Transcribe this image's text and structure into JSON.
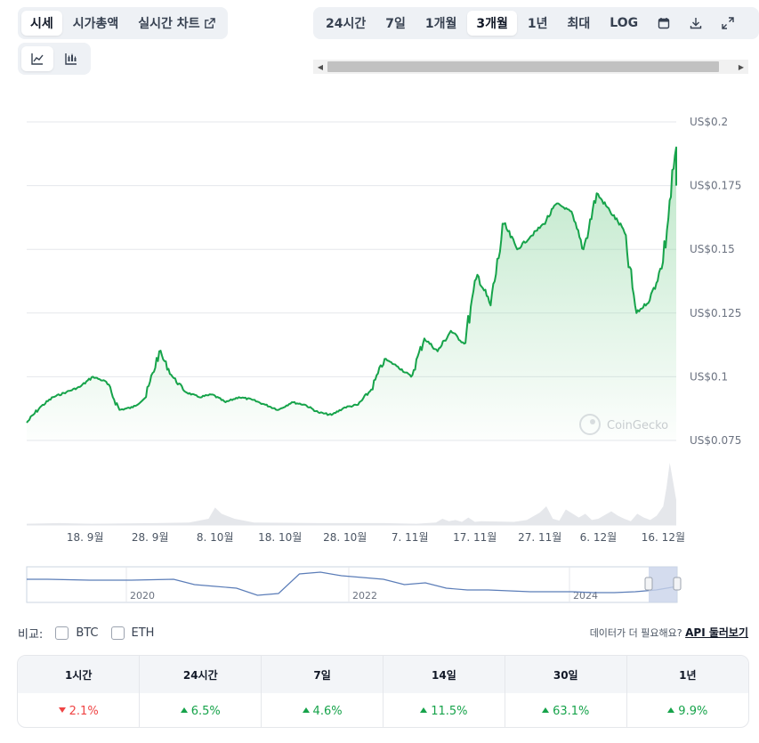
{
  "tabs": {
    "price": "시세",
    "market_cap": "시가총액",
    "live_chart": "실시간 차트",
    "active": "price"
  },
  "chart_type": {
    "icons": [
      "line-chart-icon",
      "candlestick-icon"
    ],
    "active": "line"
  },
  "ranges": {
    "items": [
      "24시간",
      "7일",
      "1개월",
      "3개월",
      "1년",
      "최대",
      "LOG"
    ],
    "active": "3개월",
    "icons": [
      "calendar-icon",
      "download-icon",
      "expand-icon"
    ]
  },
  "colors": {
    "line": "#16a34a",
    "area_top": "#86d39b",
    "volume": "#e5e7eb",
    "navigator_line": "#5b7db8",
    "navigator_selection": "#c9d3ea",
    "positive": "#16a34a",
    "negative": "#ef4444"
  },
  "watermark": "CoinGecko",
  "chart_data": {
    "type": "area",
    "title": "",
    "x": [
      "9/9",
      "9/12",
      "9/15",
      "9/18",
      "9/21",
      "9/24",
      "9/27",
      "9/30",
      "10/3",
      "10/6",
      "10/8",
      "10/9",
      "10/12",
      "10/15",
      "10/18",
      "10/21",
      "10/24",
      "10/27",
      "10/30",
      "11/2",
      "11/5",
      "11/8",
      "11/10",
      "11/11",
      "11/13",
      "11/15",
      "11/17",
      "11/19",
      "11/20",
      "11/22",
      "11/24",
      "11/25",
      "11/26",
      "11/27",
      "11/28",
      "11/30",
      "12/2",
      "12/3",
      "12/4",
      "12/6",
      "12/8",
      "12/10",
      "12/11",
      "12/12",
      "12/13",
      "12/14",
      "12/15",
      "12/16",
      "12/16 12:00",
      "12/17"
    ],
    "y": [
      0.082,
      0.088,
      0.092,
      0.094,
      0.096,
      0.1,
      0.098,
      0.087,
      0.088,
      0.092,
      0.11,
      0.1,
      0.094,
      0.092,
      0.093,
      0.09,
      0.092,
      0.091,
      0.089,
      0.087,
      0.09,
      0.089,
      0.086,
      0.085,
      0.088,
      0.089,
      0.095,
      0.107,
      0.104,
      0.1,
      0.115,
      0.11,
      0.118,
      0.113,
      0.14,
      0.128,
      0.16,
      0.15,
      0.155,
      0.16,
      0.168,
      0.165,
      0.15,
      0.172,
      0.165,
      0.158,
      0.125,
      0.13,
      0.145,
      0.19
    ],
    "yticks": [
      "US$0.2",
      "US$0.175",
      "US$0.15",
      "US$0.125",
      "US$0.1",
      "US$0.075"
    ],
    "ytick_values": [
      0.2,
      0.175,
      0.15,
      0.125,
      0.1,
      0.075
    ],
    "xticks": [
      "18. 9월",
      "28. 9월",
      "8. 10월",
      "18. 10월",
      "28. 10월",
      "7. 11월",
      "17. 11월",
      "27. 11월",
      "6. 12월",
      "16. 12월"
    ],
    "xtick_days": [
      9,
      19,
      29,
      39,
      49,
      59,
      69,
      79,
      88,
      98
    ],
    "ylim": [
      0.075,
      0.2
    ],
    "volume": {
      "days": [
        0,
        5,
        10,
        20,
        25,
        28,
        29,
        30,
        32,
        35,
        45,
        55,
        60,
        63,
        64,
        65,
        66,
        67,
        68,
        69,
        70,
        75,
        77,
        79,
        80,
        81,
        82,
        83,
        85,
        86,
        87,
        88,
        90,
        91,
        92,
        93,
        94,
        95,
        96,
        97,
        98,
        98.5,
        99,
        99.5,
        100
      ],
      "values": [
        0.02,
        0.03,
        0.02,
        0.03,
        0.04,
        0.1,
        0.28,
        0.18,
        0.1,
        0.04,
        0.03,
        0.03,
        0.02,
        0.04,
        0.1,
        0.06,
        0.08,
        0.05,
        0.12,
        0.05,
        0.06,
        0.05,
        0.08,
        0.2,
        0.3,
        0.1,
        0.07,
        0.25,
        0.12,
        0.18,
        0.08,
        0.1,
        0.22,
        0.15,
        0.1,
        0.06,
        0.18,
        0.12,
        0.08,
        0.15,
        0.3,
        0.6,
        1.0,
        0.7,
        0.4
      ]
    },
    "grid": true,
    "legend": "none"
  },
  "navigator": {
    "labels": [
      "2020",
      "2022",
      "2024"
    ]
  },
  "compare": {
    "label": "비교:",
    "options": [
      "BTC",
      "ETH"
    ]
  },
  "more_data": {
    "text": "데이터가 더 필요해요?",
    "link": "API 둘러보기"
  },
  "performance": {
    "headers": [
      "1시간",
      "24시간",
      "7일",
      "14일",
      "30일",
      "1년"
    ],
    "values": [
      "2.1%",
      "6.5%",
      "4.6%",
      "11.5%",
      "63.1%",
      "9.9%"
    ],
    "directions": [
      "down",
      "up",
      "up",
      "up",
      "up",
      "up"
    ]
  }
}
